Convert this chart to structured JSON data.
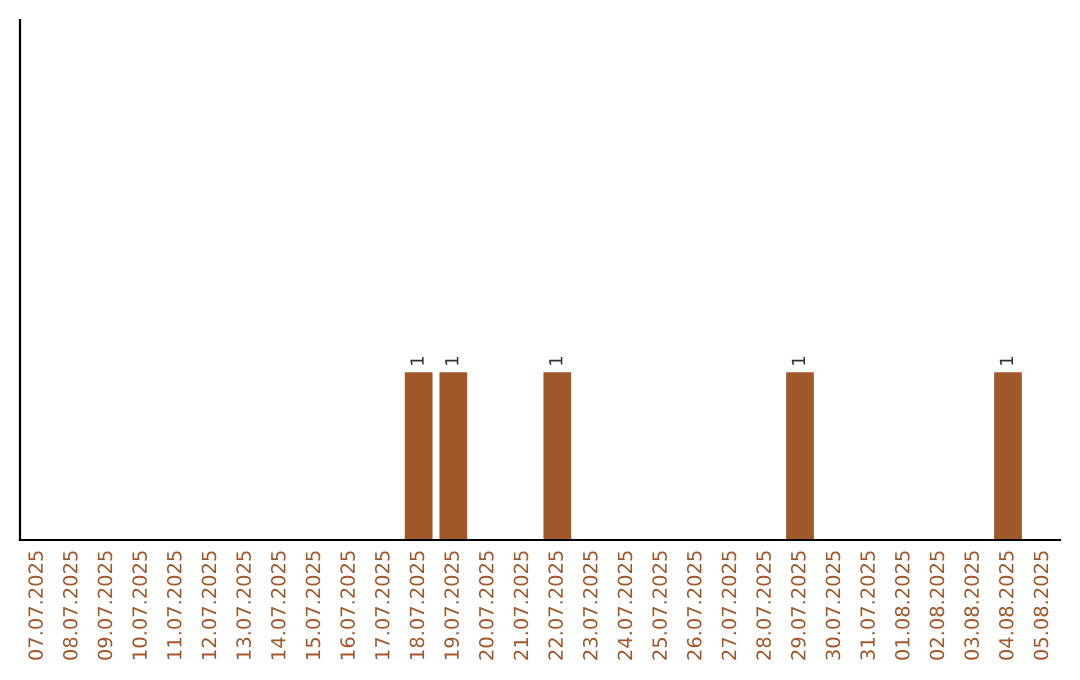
{
  "chart_data": {
    "type": "bar",
    "categories": [
      "07.07.2025",
      "08.07.2025",
      "09.07.2025",
      "10.07.2025",
      "11.07.2025",
      "12.07.2025",
      "13.07.2025",
      "14.07.2025",
      "15.07.2025",
      "16.07.2025",
      "17.07.2025",
      "18.07.2025",
      "19.07.2025",
      "20.07.2025",
      "21.07.2025",
      "22.07.2025",
      "23.07.2025",
      "24.07.2025",
      "25.07.2025",
      "26.07.2025",
      "27.07.2025",
      "28.07.2025",
      "29.07.2025",
      "30.07.2025",
      "31.07.2025",
      "01.08.2025",
      "02.08.2025",
      "03.08.2025",
      "04.08.2025",
      "05.08.2025"
    ],
    "values": [
      0,
      0,
      0,
      0,
      0,
      0,
      0,
      0,
      0,
      0,
      0,
      1,
      1,
      0,
      0,
      1,
      0,
      0,
      0,
      0,
      0,
      0,
      1,
      0,
      0,
      0,
      0,
      0,
      1,
      0
    ],
    "value_labels": [
      null,
      null,
      null,
      null,
      null,
      null,
      null,
      null,
      null,
      null,
      null,
      "1",
      "1",
      null,
      null,
      "1",
      null,
      null,
      null,
      null,
      null,
      null,
      "1",
      null,
      null,
      null,
      null,
      null,
      "1",
      null
    ],
    "color": "#a0582a",
    "ylim": [
      0,
      3.1
    ],
    "tick_labels": "x",
    "grid": false,
    "legend": false
  }
}
